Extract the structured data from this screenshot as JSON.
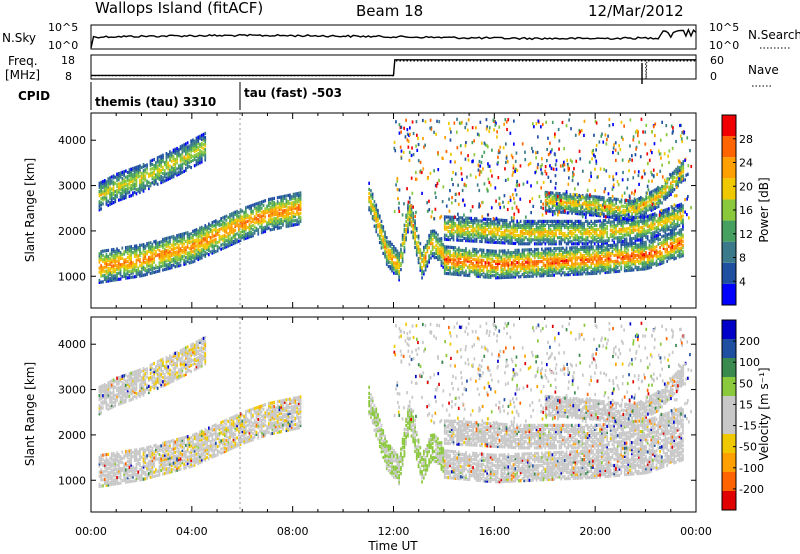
{
  "header": {
    "station": "Wallops Island (fitACF)",
    "beam": "Beam 18",
    "date": "12/Mar/2012"
  },
  "top_panels": {
    "nsky_label": "N.Sky",
    "nsky_ticks": [
      "10^5",
      "10^0"
    ],
    "nsearch_label": "N.Search",
    "nsearch_ticks": [
      "10^5",
      "10^0"
    ],
    "freq_label_line1": "Freq.",
    "freq_label_line2": "[MHz]",
    "freq_ticks": [
      "18",
      "8"
    ],
    "nave_label": "Nave",
    "nave_ticks": [
      "60",
      "0"
    ],
    "cpid_label": "CPID",
    "cpid_segments": [
      {
        "label": "themis (tau) 3310",
        "start_hour": 0
      },
      {
        "label": "tau (fast) -503",
        "start_hour": 6
      }
    ],
    "freq_series": {
      "hours": [
        0,
        12,
        12.05,
        24
      ],
      "values": [
        9.5,
        9.5,
        16,
        16
      ],
      "ylim": [
        8,
        18
      ]
    },
    "nave_series": {
      "hours": [
        0,
        12,
        12.05,
        22,
        22.02,
        22.05,
        24
      ],
      "values": [
        8,
        8,
        45,
        45,
        0,
        45,
        45
      ],
      "ylim": [
        0,
        60
      ]
    }
  },
  "chart_data": [
    {
      "type": "heatmap",
      "name": "power",
      "ylabel": "Slant Range [km]",
      "y_ticks": [
        "4000",
        "3000",
        "2000",
        "1000"
      ],
      "ylim": [
        300,
        4600
      ],
      "xlim": [
        0,
        24
      ],
      "colorbar_label": "Power [dB]",
      "colorbar_ticks": [
        "28",
        "24",
        "20",
        "16",
        "12",
        "8",
        "4"
      ],
      "colorbar_range": [
        0,
        32
      ],
      "colors": [
        "#0000ff",
        "#1e4fa0",
        "#3a7a8a",
        "#46a060",
        "#8ac83c",
        "#f0c800",
        "#ffa000",
        "#ff6400",
        "#f00000"
      ],
      "echo_bands": [
        {
          "hours": [
            0.3,
            2,
            4,
            6,
            7,
            8.3
          ],
          "ranges": [
            1250,
            1400,
            1700,
            2200,
            2400,
            2550
          ],
          "width": 350,
          "peak_db": 26
        },
        {
          "hours": [
            0.3,
            1,
            2,
            3.5,
            4.5
          ],
          "ranges": [
            2800,
            3000,
            3200,
            3600,
            3900
          ],
          "width": 300,
          "peak_db": 20
        },
        {
          "hours": [
            11,
            11.7,
            12.2,
            12.6,
            13.1,
            13.5,
            14
          ],
          "ranges": [
            2800,
            1600,
            1250,
            2500,
            1300,
            1800,
            1500
          ],
          "width": 300,
          "peak_db": 24
        },
        {
          "hours": [
            14,
            16,
            18,
            20,
            22,
            23.5
          ],
          "ranges": [
            1400,
            1300,
            1350,
            1400,
            1500,
            1800
          ],
          "width": 300,
          "peak_db": 28
        },
        {
          "hours": [
            14,
            17,
            20,
            22,
            23.5
          ],
          "ranges": [
            2100,
            2000,
            2000,
            2100,
            2400
          ],
          "width": 250,
          "peak_db": 22
        },
        {
          "hours": [
            18,
            20,
            21.5,
            22.5,
            23.5
          ],
          "ranges": [
            2700,
            2600,
            2500,
            2800,
            3400
          ],
          "width": 220,
          "peak_db": 22
        }
      ]
    },
    {
      "type": "heatmap",
      "name": "velocity",
      "ylabel": "Slant Range [km]",
      "y_ticks": [
        "4000",
        "3000",
        "2000",
        "1000"
      ],
      "ylim": [
        300,
        4600
      ],
      "xlim": [
        0,
        24
      ],
      "x_ticks": [
        "00:00",
        "04:00",
        "08:00",
        "12:00",
        "16:00",
        "20:00",
        "00:00"
      ],
      "xlabel": "Time UT",
      "colorbar_label": "Velocity [m s⁻¹]",
      "colorbar_ticks": [
        "200",
        "100",
        "50",
        "15",
        "-15",
        "-50",
        "-100",
        "-200"
      ],
      "colors": [
        "#e00000",
        "#ff6400",
        "#ffa000",
        "#f0c800",
        "#c8c8c8",
        "#c8c8c8",
        "#8ac83c",
        "#3a8a50",
        "#1e4fa0",
        "#0000c8"
      ],
      "ground_scatter_color": "#c8c8c8"
    }
  ]
}
